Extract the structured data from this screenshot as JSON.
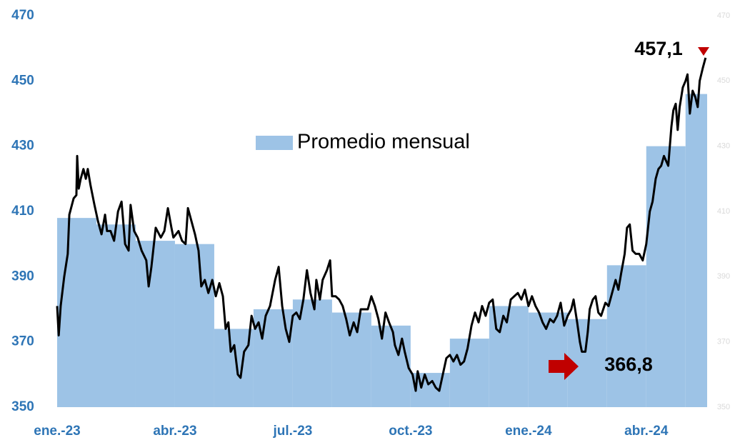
{
  "chart_data": {
    "type": "line",
    "xlim": [
      0,
      16.55
    ],
    "xticks": [
      {
        "value": 0,
        "label": "ene.-23"
      },
      {
        "value": 3,
        "label": "abr.-23"
      },
      {
        "value": 6,
        "label": "jul.-23"
      },
      {
        "value": 9,
        "label": "oct.-23"
      },
      {
        "value": 12,
        "label": "ene.-24"
      },
      {
        "value": 15,
        "label": "abr.-24"
      }
    ],
    "ylim": [
      350,
      470
    ],
    "yticks": [
      350,
      370,
      390,
      410,
      430,
      450,
      470
    ],
    "y2lim": [
      350,
      470
    ],
    "y2ticks": [
      350,
      370,
      390,
      410,
      430,
      450,
      470
    ],
    "legend": "upper center",
    "annotations": [
      {
        "text": "457,1"
      },
      {
        "text": "366,8"
      }
    ],
    "series": [
      {
        "name": "Promedio mensual",
        "type": "area",
        "color": "#9dc3e6",
        "x": [
          0,
          1,
          2,
          3,
          4,
          5,
          6,
          7,
          8,
          9,
          10,
          11,
          12,
          13,
          14,
          15,
          16
        ],
        "values": [
          408,
          406,
          401,
          400,
          374,
          380,
          383,
          379,
          375,
          360.5,
          371,
          381,
          379,
          377,
          393.5,
          430,
          446
        ]
      },
      {
        "type": "line",
        "color": "#000000",
        "x": [
          0,
          0.04,
          0.09,
          0.18,
          0.27,
          0.31,
          0.42,
          0.49,
          0.51,
          0.55,
          0.6,
          0.67,
          0.73,
          0.78,
          0.85,
          0.95,
          1.04,
          1.13,
          1.22,
          1.27,
          1.36,
          1.45,
          1.55,
          1.64,
          1.73,
          1.82,
          1.87,
          1.96,
          2.05,
          2.15,
          2.27,
          2.33,
          2.4,
          2.51,
          2.64,
          2.73,
          2.82,
          2.91,
          2.96,
          3.09,
          3.18,
          3.27,
          3.33,
          3.42,
          3.51,
          3.6,
          3.67,
          3.76,
          3.85,
          3.95,
          4.04,
          4.13,
          4.22,
          4.29,
          4.36,
          4.42,
          4.51,
          4.6,
          4.67,
          4.76,
          4.87,
          4.95,
          5.04,
          5.13,
          5.22,
          5.31,
          5.42,
          5.55,
          5.64,
          5.73,
          5.82,
          5.91,
          6,
          6.09,
          6.18,
          6.27,
          6.36,
          6.45,
          6.55,
          6.6,
          6.69,
          6.76,
          6.87,
          6.95,
          7,
          7.09,
          7.18,
          7.27,
          7.36,
          7.45,
          7.55,
          7.64,
          7.73,
          7.82,
          7.91,
          8,
          8.09,
          8.18,
          8.27,
          8.36,
          8.45,
          8.55,
          8.6,
          8.69,
          8.78,
          8.85,
          8.95,
          9.05,
          9.13,
          9.18,
          9.27,
          9.36,
          9.45,
          9.55,
          9.64,
          9.73,
          9.82,
          9.91,
          10,
          10.09,
          10.18,
          10.27,
          10.36,
          10.45,
          10.55,
          10.64,
          10.73,
          10.82,
          10.91,
          11,
          11.09,
          11.18,
          11.27,
          11.36,
          11.45,
          11.55,
          11.64,
          11.73,
          11.82,
          11.91,
          12,
          12.09,
          12.18,
          12.27,
          12.36,
          12.45,
          12.55,
          12.64,
          12.73,
          12.82,
          12.91,
          13,
          13.09,
          13.15,
          13.24,
          13.31,
          13.36,
          13.45,
          13.51,
          13.56,
          13.64,
          13.71,
          13.78,
          13.85,
          13.96,
          14.04,
          14.13,
          14.22,
          14.29,
          14.36,
          14.45,
          14.51,
          14.58,
          14.65,
          14.73,
          14.82,
          14.91,
          15,
          15.09,
          15.16,
          15.24,
          15.31,
          15.38,
          15.45,
          15.56,
          15.64,
          15.69,
          15.75,
          15.8,
          15.85,
          15.93,
          16,
          16.05,
          16.11,
          16.18,
          16.25,
          16.31,
          16.36,
          16.44,
          16.51
        ],
        "values": [
          381,
          372,
          381,
          390,
          397,
          409,
          414,
          415,
          427,
          417,
          420,
          423,
          420,
          423,
          418,
          412,
          407,
          403,
          409,
          404,
          404,
          401,
          410,
          413,
          400,
          398,
          412,
          404,
          402,
          398,
          395,
          387,
          393,
          405,
          402,
          404,
          411,
          405,
          402,
          404,
          401,
          400,
          411,
          407,
          403,
          398,
          387,
          389,
          385,
          389,
          384,
          388,
          384,
          374,
          376,
          367,
          369,
          360,
          359,
          367,
          369,
          378,
          374,
          376,
          371,
          378,
          381,
          389,
          393,
          381,
          374,
          370,
          378,
          379,
          377,
          383,
          392,
          385,
          380,
          389,
          383,
          389,
          392,
          395,
          384,
          384,
          383,
          381,
          377,
          372,
          376,
          373,
          380,
          380,
          380,
          384,
          381,
          377,
          371,
          379,
          376,
          373,
          369,
          366,
          371,
          367,
          362,
          360,
          355,
          361,
          356,
          360,
          357,
          358,
          356,
          355,
          360,
          365,
          366,
          364,
          366,
          363,
          364,
          368,
          375,
          379,
          376,
          381,
          378,
          382,
          383,
          374,
          373,
          378,
          376,
          383,
          384,
          385,
          383,
          386,
          381,
          384,
          381,
          379,
          376,
          374,
          377,
          376,
          378,
          382,
          375,
          378,
          380,
          383,
          376,
          370,
          367,
          367,
          373,
          380,
          383,
          384,
          379,
          378,
          382,
          381,
          385,
          389,
          386,
          391,
          397,
          405,
          406,
          398,
          397,
          397,
          395,
          400,
          410,
          413,
          420,
          423,
          424,
          427,
          424,
          436,
          441,
          443,
          435,
          442,
          448,
          450,
          452,
          440,
          447,
          445,
          442,
          450,
          454,
          457.1
        ]
      }
    ]
  }
}
